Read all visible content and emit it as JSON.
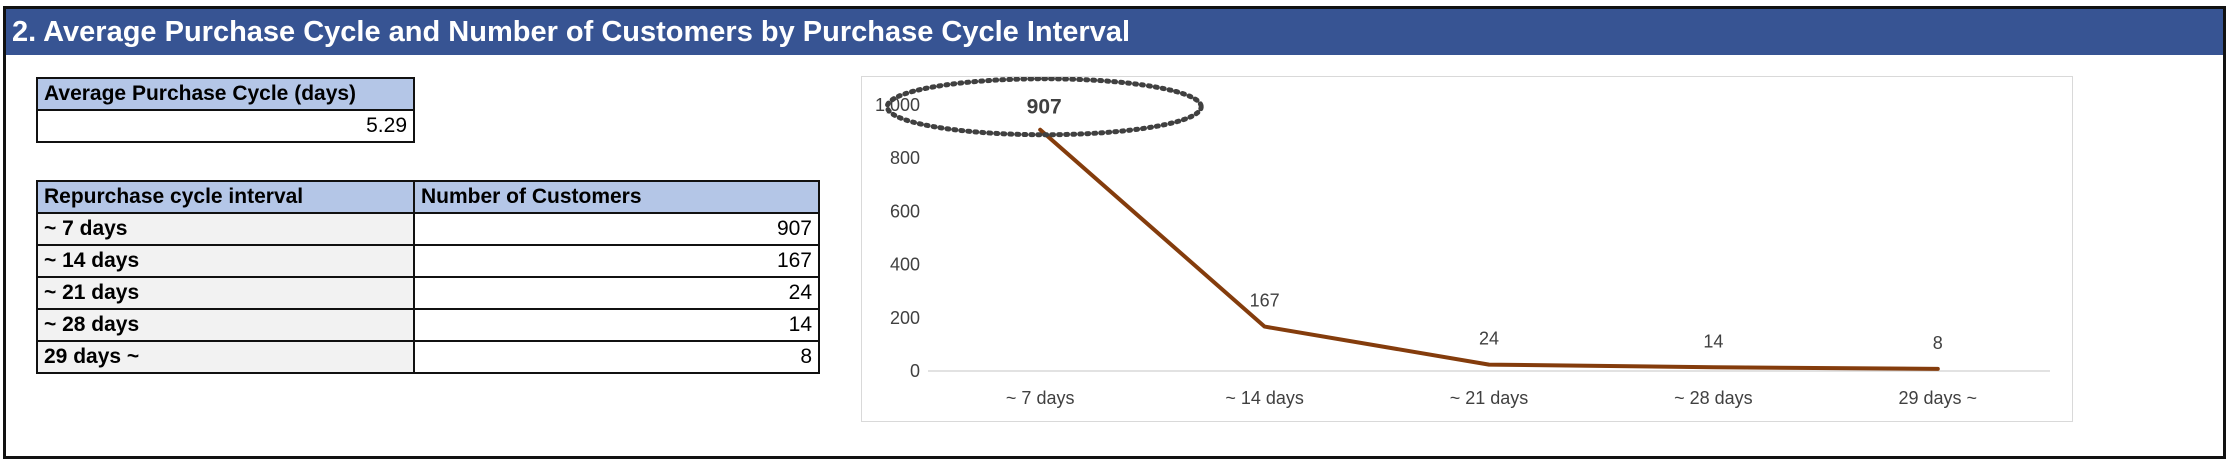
{
  "section_title": "2. Average Purchase Cycle and Number of Customers by Purchase Cycle Interval",
  "avg_table": {
    "header": "Average Purchase Cycle (days)",
    "value": "5.29"
  },
  "cycle_table": {
    "headers": [
      "Repurchase cycle interval",
      "Number of Customers"
    ],
    "rows": [
      {
        "label": "~ 7 days",
        "value": "907"
      },
      {
        "label": "~ 14 days",
        "value": "167"
      },
      {
        "label": "~ 21 days",
        "value": "24"
      },
      {
        "label": "~ 28 days",
        "value": "14"
      },
      {
        "label": "29 days ~",
        "value": "8"
      }
    ]
  },
  "chart_data": {
    "type": "line",
    "categories": [
      "~ 7 days",
      "~ 14 days",
      "~ 21 days",
      "~ 28 days",
      "29 days ~"
    ],
    "series": [
      {
        "values": [
          907,
          167,
          24,
          14,
          8
        ]
      }
    ],
    "data_labels": [
      "907",
      "167",
      "24",
      "14",
      "8"
    ],
    "ylim": [
      0,
      1000
    ],
    "yticks": [
      0,
      200,
      400,
      600,
      800,
      1000
    ],
    "ytick_labels": [
      "0",
      "200",
      "400",
      "600",
      "800",
      "1,000"
    ],
    "line_color": "#843c0c",
    "highlight": "dotted ellipse around first point label",
    "grid": false,
    "legend": "none"
  }
}
